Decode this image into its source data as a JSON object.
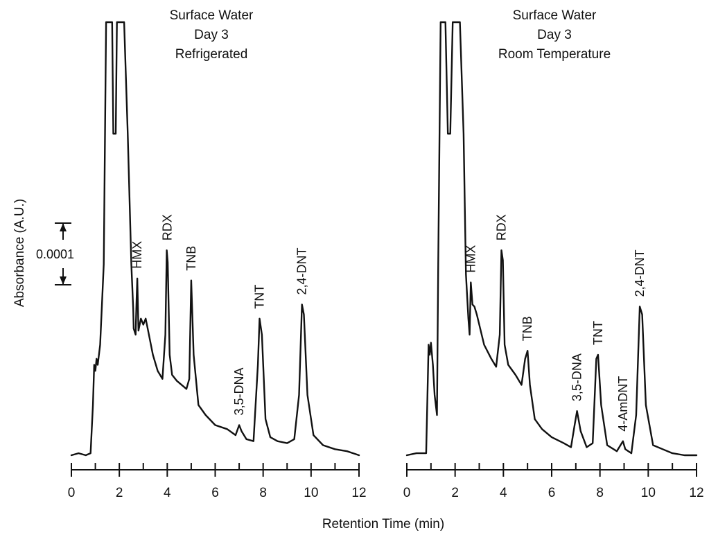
{
  "chart_data": {
    "type": "line",
    "shared_y_label": "Absorbance (A.U.)",
    "shared_x_label": "Retention Time (min)",
    "scale_bar_label": "0.0001",
    "panels": [
      {
        "id": "refrigerated",
        "title_lines": [
          "Surface Water",
          "Day 3",
          "Refrigerated"
        ],
        "xlim": [
          0,
          12
        ],
        "x_ticks": [
          0,
          2,
          4,
          6,
          8,
          10,
          12
        ],
        "minor_ticks": [
          1,
          3,
          5,
          7,
          9,
          11
        ],
        "trace": [
          [
            0,
            0.0
          ],
          [
            0.3,
            0.01
          ],
          [
            0.6,
            0.0
          ],
          [
            0.8,
            0.01
          ],
          [
            0.9,
            0.25
          ],
          [
            0.95,
            0.45
          ],
          [
            1.0,
            0.42
          ],
          [
            1.05,
            0.48
          ],
          [
            1.1,
            0.45
          ],
          [
            1.2,
            0.55
          ],
          [
            1.35,
            0.95
          ],
          [
            1.45,
            2.6
          ],
          [
            1.7,
            2.6
          ],
          [
            1.75,
            1.6
          ],
          [
            1.85,
            1.6
          ],
          [
            1.9,
            2.6
          ],
          [
            2.2,
            2.6
          ],
          [
            2.35,
            1.6
          ],
          [
            2.5,
            0.95
          ],
          [
            2.58,
            0.73
          ],
          [
            2.6,
            0.63
          ],
          [
            2.68,
            0.6
          ],
          [
            2.72,
            0.78
          ],
          [
            2.75,
            0.88
          ],
          [
            2.8,
            0.62
          ],
          [
            2.9,
            0.68
          ],
          [
            3.0,
            0.65
          ],
          [
            3.1,
            0.68
          ],
          [
            3.2,
            0.62
          ],
          [
            3.4,
            0.5
          ],
          [
            3.6,
            0.42
          ],
          [
            3.8,
            0.38
          ],
          [
            3.92,
            0.6
          ],
          [
            3.98,
            1.02
          ],
          [
            4.02,
            0.96
          ],
          [
            4.1,
            0.5
          ],
          [
            4.2,
            0.4
          ],
          [
            4.4,
            0.37
          ],
          [
            4.8,
            0.33
          ],
          [
            4.92,
            0.38
          ],
          [
            5.0,
            0.87
          ],
          [
            5.1,
            0.5
          ],
          [
            5.3,
            0.25
          ],
          [
            5.6,
            0.2
          ],
          [
            6.0,
            0.15
          ],
          [
            6.5,
            0.13
          ],
          [
            6.85,
            0.1
          ],
          [
            7.0,
            0.15
          ],
          [
            7.1,
            0.12
          ],
          [
            7.3,
            0.08
          ],
          [
            7.6,
            0.07
          ],
          [
            7.78,
            0.45
          ],
          [
            7.85,
            0.68
          ],
          [
            7.95,
            0.6
          ],
          [
            8.1,
            0.18
          ],
          [
            8.3,
            0.09
          ],
          [
            8.6,
            0.07
          ],
          [
            9.0,
            0.06
          ],
          [
            9.3,
            0.08
          ],
          [
            9.5,
            0.3
          ],
          [
            9.62,
            0.75
          ],
          [
            9.7,
            0.7
          ],
          [
            9.85,
            0.3
          ],
          [
            10.1,
            0.1
          ],
          [
            10.5,
            0.05
          ],
          [
            11.0,
            0.03
          ],
          [
            11.5,
            0.02
          ],
          [
            12.0,
            0.0
          ]
        ],
        "labels": [
          {
            "text": "HMX",
            "x": 2.75,
            "y": 0.88
          },
          {
            "text": "RDX",
            "x": 4.0,
            "y": 1.02
          },
          {
            "text": "TNB",
            "x": 5.0,
            "y": 0.87
          },
          {
            "text": "3,5-DNA",
            "x": 7.0,
            "y": 0.15
          },
          {
            "text": "TNT",
            "x": 7.85,
            "y": 0.68
          },
          {
            "text": "2,4-DNT",
            "x": 9.62,
            "y": 0.75
          }
        ]
      },
      {
        "id": "room-temperature",
        "title_lines": [
          "Surface Water",
          "Day 3",
          "Room Temperature"
        ],
        "xlim": [
          0,
          12
        ],
        "x_ticks": [
          0,
          2,
          4,
          6,
          8,
          10,
          12
        ],
        "minor_ticks": [
          1,
          3,
          5,
          7,
          9,
          11
        ],
        "trace": [
          [
            0,
            0.0
          ],
          [
            0.4,
            0.01
          ],
          [
            0.8,
            0.01
          ],
          [
            0.9,
            0.55
          ],
          [
            0.95,
            0.5
          ],
          [
            1.0,
            0.56
          ],
          [
            1.08,
            0.45
          ],
          [
            1.15,
            0.3
          ],
          [
            1.25,
            0.2
          ],
          [
            1.3,
            0.95
          ],
          [
            1.4,
            2.6
          ],
          [
            1.6,
            2.6
          ],
          [
            1.7,
            1.6
          ],
          [
            1.8,
            1.6
          ],
          [
            1.9,
            2.6
          ],
          [
            2.2,
            2.6
          ],
          [
            2.35,
            1.6
          ],
          [
            2.45,
            0.9
          ],
          [
            2.55,
            0.68
          ],
          [
            2.6,
            0.6
          ],
          [
            2.65,
            0.86
          ],
          [
            2.72,
            0.75
          ],
          [
            2.8,
            0.74
          ],
          [
            2.9,
            0.7
          ],
          [
            3.0,
            0.65
          ],
          [
            3.2,
            0.55
          ],
          [
            3.5,
            0.48
          ],
          [
            3.7,
            0.44
          ],
          [
            3.85,
            0.6
          ],
          [
            3.92,
            1.02
          ],
          [
            3.98,
            0.97
          ],
          [
            4.05,
            0.55
          ],
          [
            4.2,
            0.45
          ],
          [
            4.5,
            0.4
          ],
          [
            4.75,
            0.35
          ],
          [
            4.9,
            0.48
          ],
          [
            5.0,
            0.52
          ],
          [
            5.1,
            0.35
          ],
          [
            5.3,
            0.18
          ],
          [
            5.6,
            0.13
          ],
          [
            6.0,
            0.09
          ],
          [
            6.5,
            0.06
          ],
          [
            6.8,
            0.04
          ],
          [
            6.95,
            0.15
          ],
          [
            7.05,
            0.22
          ],
          [
            7.2,
            0.12
          ],
          [
            7.45,
            0.04
          ],
          [
            7.7,
            0.06
          ],
          [
            7.85,
            0.48
          ],
          [
            7.92,
            0.5
          ],
          [
            8.05,
            0.25
          ],
          [
            8.3,
            0.05
          ],
          [
            8.7,
            0.02
          ],
          [
            8.95,
            0.07
          ],
          [
            9.05,
            0.03
          ],
          [
            9.3,
            0.01
          ],
          [
            9.5,
            0.2
          ],
          [
            9.65,
            0.74
          ],
          [
            9.75,
            0.7
          ],
          [
            9.9,
            0.25
          ],
          [
            10.2,
            0.05
          ],
          [
            10.6,
            0.03
          ],
          [
            11.0,
            0.01
          ],
          [
            11.5,
            0.0
          ],
          [
            12.0,
            0.0
          ]
        ],
        "labels": [
          {
            "text": "HMX",
            "x": 2.65,
            "y": 0.86
          },
          {
            "text": "RDX",
            "x": 3.92,
            "y": 1.02
          },
          {
            "text": "TNB",
            "x": 5.0,
            "y": 0.52
          },
          {
            "text": "3,5-DNA",
            "x": 7.05,
            "y": 0.22
          },
          {
            "text": "TNT",
            "x": 7.92,
            "y": 0.5
          },
          {
            "text": "4-AmDNT",
            "x": 8.95,
            "y": 0.07
          },
          {
            "text": "2,4-DNT",
            "x": 9.65,
            "y": 0.74
          }
        ]
      }
    ]
  }
}
